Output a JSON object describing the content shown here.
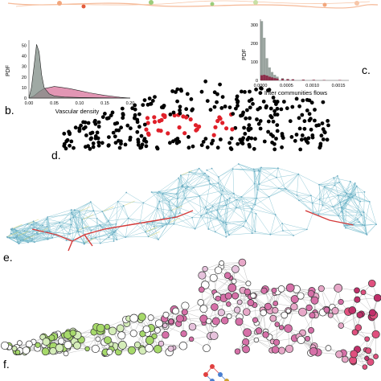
{
  "panels": {
    "b": {
      "letter": "b.",
      "ylabel": "PDF",
      "xlabel": "Vascular density",
      "yticks": [
        "50",
        "40",
        "30",
        "20",
        "10",
        "0"
      ],
      "xticks": [
        "0.00",
        "0.05",
        "0.10",
        "0.15",
        "0.20"
      ]
    },
    "c": {
      "letter": "c.",
      "ylabel": "PDF",
      "xlabel": "Inter communities flows",
      "yticks": [
        "300",
        "200",
        "100",
        "0"
      ],
      "xticks": [
        "0.0000",
        "0.0005",
        "0.0010",
        "0.0015"
      ]
    },
    "d": {
      "letter": "d."
    },
    "e": {
      "letter": "e."
    },
    "f": {
      "letter": "f."
    }
  },
  "colors": {
    "gray_fill": "#7f8c86",
    "pink_fill": "#d8739b",
    "dark_red_bar": "#8c2040",
    "edge_blue": "#7fbfd0",
    "edge_red": "#d43a3a",
    "node_black": "#000000",
    "node_red": "#e0202a",
    "node_green": "#a6d96a",
    "node_pink": "#d670a8"
  },
  "chart_data": [
    {
      "type": "area",
      "panel": "b",
      "xlabel": "Vascular density",
      "ylabel": "PDF",
      "xlim": [
        0.0,
        0.2
      ],
      "ylim": [
        0,
        55
      ],
      "series": [
        {
          "x": [
            0.0,
            0.005,
            0.01,
            0.015,
            0.02,
            0.025,
            0.03,
            0.04,
            0.05,
            0.07,
            0.1,
            0.15,
            0.2
          ],
          "values": [
            0,
            10,
            30,
            51,
            44,
            22,
            10,
            4,
            2,
            1,
            0.5,
            0.2,
            0
          ]
        },
        {
          "x": [
            0.0,
            0.01,
            0.02,
            0.03,
            0.04,
            0.05,
            0.06,
            0.08,
            0.1,
            0.12,
            0.15,
            0.18,
            0.2
          ],
          "values": [
            0,
            2,
            6,
            9,
            10,
            11,
            10.5,
            9,
            7,
            5,
            2.5,
            0.8,
            0
          ]
        }
      ]
    },
    {
      "type": "bar",
      "panel": "c",
      "xlabel": "Inter communities flows",
      "ylabel": "PDF",
      "xlim": [
        0.0,
        0.0017
      ],
      "ylim": [
        0,
        330
      ],
      "bin_width": 5e-05,
      "series": [
        {
          "x": [
            0.0,
            5e-05,
            0.0001,
            0.00015,
            0.0002,
            0.00025,
            0.0003,
            0.0004,
            0.0005,
            0.0006,
            0.0008,
            0.001,
            0.0012,
            0.0015
          ],
          "values": [
            320,
            230,
            120,
            70,
            45,
            30,
            20,
            12,
            8,
            6,
            4,
            3,
            2,
            2
          ]
        },
        {
          "x": [
            0.0,
            5e-05,
            0.0001,
            0.00015,
            0.0002,
            0.00025,
            0.0003,
            0.0004,
            0.0005,
            0.0006,
            0.0008,
            0.001,
            0.0012,
            0.0015
          ],
          "values": [
            28,
            30,
            26,
            20,
            16,
            12,
            10,
            8,
            6,
            5,
            4,
            3,
            2,
            2
          ]
        }
      ]
    }
  ]
}
